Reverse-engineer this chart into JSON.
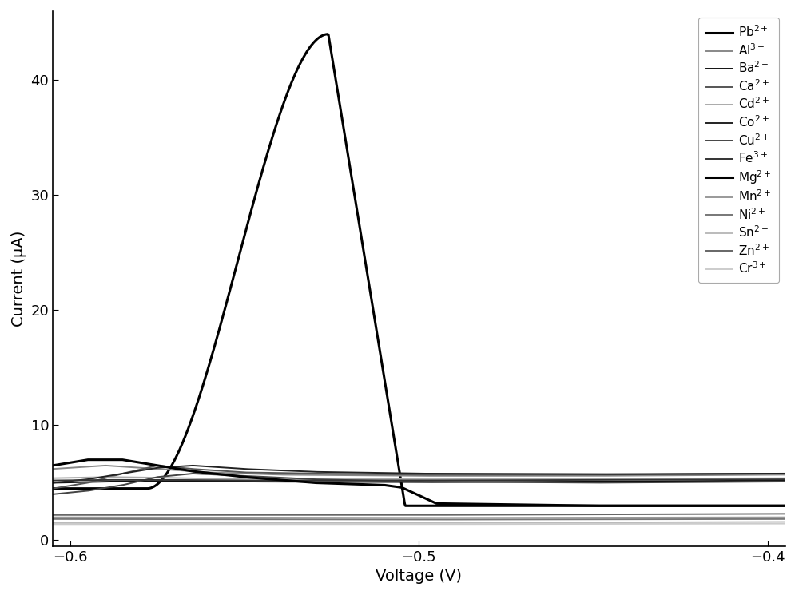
{
  "xlabel": "Voltage (V)",
  "ylabel": "Current (μA)",
  "xlim": [
    -0.605,
    -0.395
  ],
  "ylim": [
    -0.5,
    46
  ],
  "xticks": [
    -0.6,
    -0.5,
    -0.4
  ],
  "yticks": [
    0,
    10,
    20,
    30,
    40
  ],
  "background_color": "#ffffff",
  "font_size": 14,
  "legend_fontsize": 11
}
